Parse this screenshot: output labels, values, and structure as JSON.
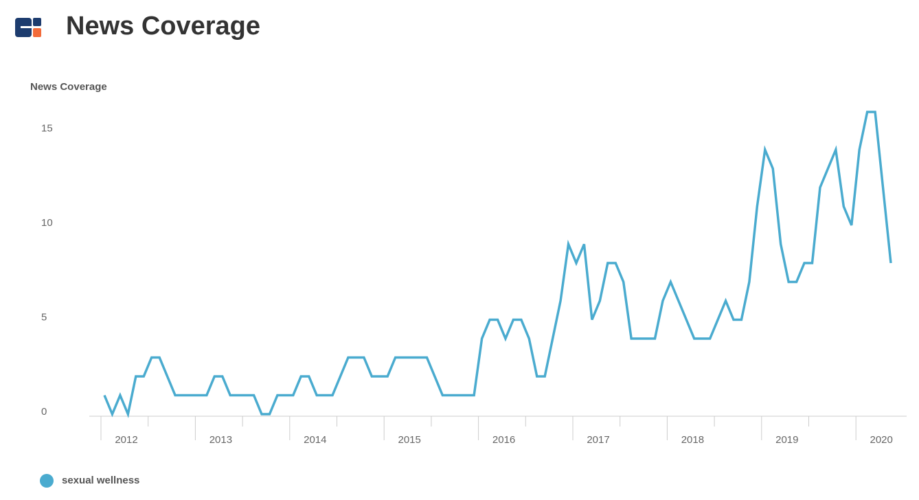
{
  "chart_data": {
    "type": "line",
    "title": "News Coverage",
    "ylabel": "News Coverage",
    "categories": [
      "2012",
      null,
      null,
      null,
      null,
      null,
      null,
      null,
      null,
      null,
      null,
      null,
      "2013",
      null,
      null,
      null,
      null,
      null,
      null,
      null,
      null,
      null,
      null,
      null,
      "2014",
      null,
      null,
      null,
      null,
      null,
      null,
      null,
      null,
      null,
      null,
      null,
      "2015",
      null,
      null,
      null,
      null,
      null,
      null,
      null,
      null,
      null,
      null,
      null,
      "2016",
      null,
      null,
      null,
      null,
      null,
      null,
      null,
      null,
      null,
      null,
      null,
      "2017",
      null,
      null,
      null,
      null,
      null,
      null,
      null,
      null,
      null,
      null,
      null,
      "2018",
      null,
      null,
      null,
      null,
      null,
      null,
      null,
      null,
      null,
      null,
      null,
      "2019",
      null,
      null,
      null,
      null,
      null,
      null,
      null,
      null,
      null,
      null,
      null,
      "2020",
      null,
      null,
      null,
      null
    ],
    "series": [
      {
        "name": "sexual wellness",
        "color": "#4aabcf",
        "values": [
          1,
          0,
          1,
          0,
          2,
          2,
          3,
          3,
          2,
          1,
          1,
          1,
          1,
          1,
          2,
          2,
          1,
          1,
          1,
          1,
          0,
          0,
          1,
          1,
          1,
          2,
          2,
          1,
          1,
          1,
          2,
          3,
          3,
          3,
          2,
          2,
          2,
          3,
          3,
          3,
          3,
          3,
          2,
          1,
          1,
          1,
          1,
          1,
          4,
          5,
          5,
          4,
          5,
          5,
          4,
          2,
          2,
          4,
          6,
          9,
          8,
          9,
          5,
          6,
          8,
          8,
          7,
          4,
          4,
          4,
          4,
          6,
          7,
          6,
          5,
          4,
          4,
          4,
          5,
          6,
          5,
          5,
          7,
          11,
          14,
          13,
          9,
          7,
          7,
          8,
          8,
          12,
          13,
          14,
          11,
          10,
          14,
          16,
          16,
          12,
          8
        ]
      }
    ],
    "ylim": [
      0,
      16
    ],
    "yticks": [
      0,
      5,
      10,
      15
    ],
    "grid": false
  }
}
